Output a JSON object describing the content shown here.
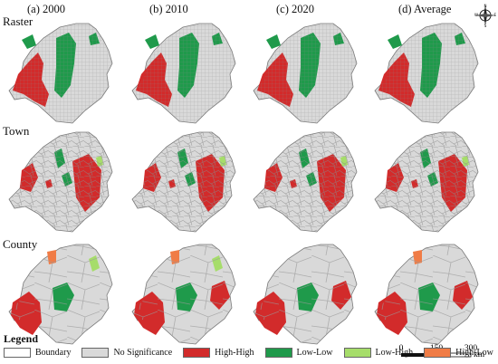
{
  "columns": [
    "(a) 2000",
    "(b) 2010",
    "(c) 2020",
    "(d) Average"
  ],
  "rows": [
    "Raster",
    "Town",
    "County"
  ],
  "legend": {
    "title": "Legend",
    "items": [
      {
        "label": "Boundary",
        "color": "#ffffff"
      },
      {
        "label": "No Significance",
        "color": "#d9d9d9"
      },
      {
        "label": "High-High",
        "color": "#d22b2b"
      },
      {
        "label": "Low-Low",
        "color": "#1f9a4b"
      },
      {
        "label": "Low-High",
        "color": "#a6dd6a"
      },
      {
        "label": "High-Low",
        "color": "#f07c46"
      }
    ]
  },
  "scale_bar": {
    "ticks": [
      "0",
      "150",
      "300"
    ],
    "unit": "km"
  },
  "compass": {
    "n": "N",
    "e": "E",
    "s": "S",
    "w": "W"
  },
  "colors": {
    "no_sig": "#d9d9d9",
    "hh": "#d22b2b",
    "ll": "#1f9a4b",
    "lh": "#a6dd6a",
    "hl": "#f07c46",
    "boundary": "#7a7a7a"
  }
}
